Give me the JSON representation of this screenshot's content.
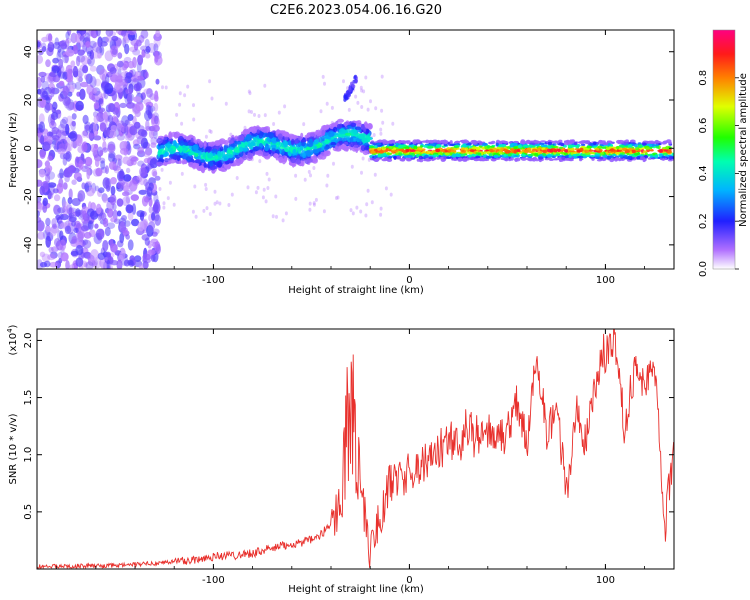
{
  "figure": {
    "title": "C2E6.2023.054.06.16.G20"
  },
  "chart_data": [
    {
      "type": "heatmap",
      "title": "C2E6.2023.054.06.16.G20",
      "xlabel": "Height of straight line (km)",
      "ylabel": "Frequency (Hz)",
      "xlim": [
        -190,
        135
      ],
      "ylim": [
        -50,
        49
      ],
      "x_ticks": [
        -100,
        0,
        100
      ],
      "y_ticks": [
        -40,
        -20,
        0,
        20,
        40
      ],
      "colorbar": {
        "label": "Normalized spectral amplitude",
        "range": [
          0,
          1
        ],
        "ticks": [
          0.0,
          0.2,
          0.4,
          0.6,
          0.8
        ],
        "colors": [
          "#ffffff",
          "#8a2be2",
          "#1010ff",
          "#00c8ff",
          "#00ff40",
          "#ffff00",
          "#ff8000",
          "#ff0000",
          "#ff0080"
        ]
      },
      "features": [
        {
          "x_range": [
            -190,
            -130
          ],
          "y_range": [
            -50,
            49
          ],
          "description_amplitude": 0.05
        },
        {
          "x_range": [
            -128,
            -20
          ],
          "center_freq_start": -3,
          "center_freq_end": 3,
          "amplitude_max": 0.45
        },
        {
          "x_range": [
            -33,
            -27
          ],
          "y_range": [
            22,
            30
          ],
          "amplitude_max": 0.15
        },
        {
          "x_range": [
            -20,
            135
          ],
          "center_freq": -1,
          "amplitude_max": 0.9
        }
      ]
    },
    {
      "type": "line",
      "xlabel": "Height of straight line (km)",
      "ylabel": "SNR (10 * v/v)",
      "y_multiplier": "(x10",
      "y_multiplier_exp": "4",
      "xlim": [
        -190,
        135
      ],
      "ylim": [
        0,
        2.1
      ],
      "x_ticks": [
        -100,
        0,
        100
      ],
      "y_ticks": [
        0.5,
        1.0,
        1.5,
        2.0
      ],
      "series": [
        {
          "color": "#e8302c",
          "x": [
            -190,
            -150,
            -130,
            -110,
            -100,
            -90,
            -80,
            -70,
            -60,
            -50,
            -45,
            -40,
            -35,
            -30,
            -25,
            -20,
            -15,
            -10,
            -5,
            0,
            5,
            10,
            20,
            30,
            40,
            50,
            55,
            60,
            65,
            70,
            75,
            80,
            85,
            90,
            95,
            100,
            105,
            110,
            115,
            120,
            125,
            130,
            135
          ],
          "y": [
            0.02,
            0.03,
            0.05,
            0.08,
            0.11,
            0.12,
            0.14,
            0.18,
            0.22,
            0.25,
            0.3,
            0.4,
            0.6,
            1.6,
            0.7,
            0.15,
            0.45,
            0.75,
            0.8,
            0.85,
            0.9,
            0.95,
            1.1,
            1.2,
            1.15,
            1.2,
            1.5,
            1.1,
            1.9,
            1.2,
            1.5,
            0.6,
            1.4,
            1.1,
            1.6,
            1.9,
            2.05,
            1.2,
            1.8,
            1.6,
            1.85,
            0.3,
            1.1
          ]
        }
      ]
    }
  ]
}
